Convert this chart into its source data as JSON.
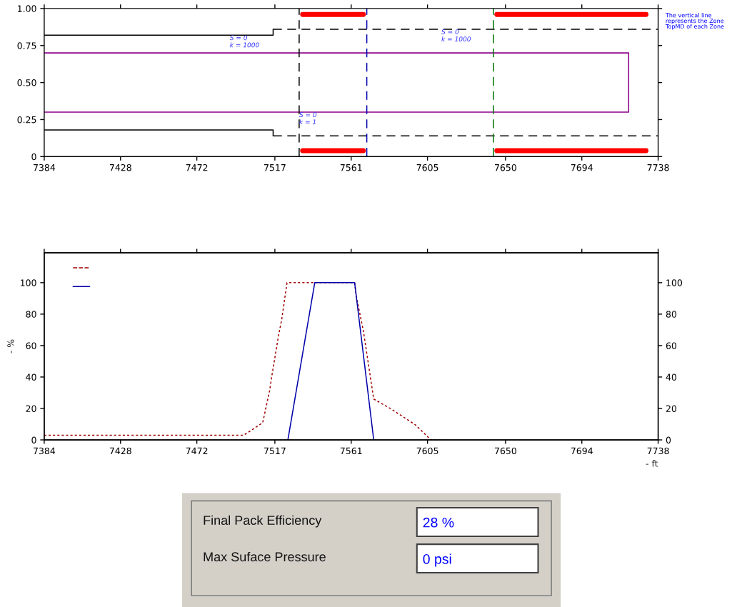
{
  "chart_data": [
    {
      "type": "line",
      "xlim": [
        7384,
        7738
      ],
      "xticks": [
        7384,
        7428,
        7472,
        7517,
        7561,
        7605,
        7650,
        7694,
        7738
      ],
      "ylim": [
        0,
        1
      ],
      "yticks": [
        0,
        0.25,
        {
          "value": 0.5,
          "label": "0.50"
        },
        0.75,
        {
          "value": 1,
          "label": "1.00"
        }
      ],
      "grid": false,
      "legend": false,
      "series": [
        {
          "color": "#000000",
          "line_style": "solid",
          "x": [
            7384,
            7516,
            7516
          ],
          "values": [
            0.82,
            0.82,
            0.86
          ]
        },
        {
          "color": "#000000",
          "line_style": "dashed",
          "x": [
            7516,
            7738
          ],
          "values": [
            0.86,
            0.86
          ]
        },
        {
          "color": "#000000",
          "line_style": "solid",
          "x": [
            7384,
            7516,
            7516
          ],
          "values": [
            0.18,
            0.18,
            0.14
          ]
        },
        {
          "color": "#000000",
          "line_style": "dashed",
          "x": [
            7516,
            7738
          ],
          "values": [
            0.14,
            0.14
          ]
        },
        {
          "color": "#8b008b",
          "line_style": "solid",
          "x": [
            7384,
            7721,
            7721,
            7384
          ],
          "values": [
            0.7,
            0.7,
            0.3,
            0.3
          ]
        },
        {
          "color": "#ff0000",
          "line_style": "solid",
          "x": [
            7533,
            7568,
            7600,
            7645,
            7731
          ],
          "values": [
            0.96,
            0.96,
            null,
            0.96,
            0.96
          ]
        },
        {
          "color": "#ff0000",
          "line_style": "solid",
          "x": [
            7533,
            7568,
            7600,
            7645,
            7731
          ],
          "values": [
            0.04,
            0.04,
            null,
            0.04,
            0.04
          ]
        }
      ],
      "ref_lines": [
        {
          "axis": "x",
          "value": 7531,
          "color": "#000000",
          "line_style": "dashed"
        },
        {
          "axis": "x",
          "value": 7570,
          "color": "#0000aa",
          "line_style": "dashed"
        },
        {
          "axis": "x",
          "value": 7643,
          "color": "#007700",
          "line_style": "dashed"
        }
      ],
      "annotations": [
        {
          "text": "S = 0\nk = 1000",
          "x": 7491,
          "y": 0.82
        },
        {
          "text": "S = 0\nk = 1",
          "x": 7531,
          "y": 0.3
        },
        {
          "text": "S = 0\nk = 1000",
          "x": 7613,
          "y": 0.86
        },
        "The vertical line\nrepresents the Zone\nTopMD of each Zone"
      ]
    },
    {
      "type": "line",
      "xlabel": "- ft",
      "ylabel": "- %",
      "xlim": [
        7384,
        7738
      ],
      "xticks": [
        7384,
        7428,
        7472,
        7517,
        7561,
        7605,
        7650,
        7694,
        7738
      ],
      "ylim": [
        0,
        119
      ],
      "yticks": [
        0,
        20,
        40,
        60,
        80,
        100
      ],
      "y2lim": [
        0,
        119
      ],
      "y2ticks": [
        0,
        20,
        40,
        60,
        80,
        100
      ],
      "grid": false,
      "series": [
        {
          "color": "#a00000",
          "line_style": "dotted",
          "x": [
            7384,
            7499,
            7504,
            7510,
            7514,
            7515,
            7519,
            7521,
            7524,
            7563,
            7564,
            7568,
            7574,
            7584,
            7598,
            7607,
            7614
          ],
          "values": [
            3,
            3,
            6.5,
            11,
            31.5,
            39,
            65.6,
            77,
            100,
            100,
            91,
            69.5,
            26,
            19.7,
            9.6,
            0,
            0
          ]
        },
        {
          "color": "#0000aa",
          "line_style": "solid",
          "x": [
            7524.5,
            7540,
            7563,
            7574
          ],
          "values": [
            0,
            100,
            100,
            0
          ]
        }
      ]
    },
    {
      "type": "other",
      "annotations": [
        "Final Pack Efficiency",
        "28 %",
        "Max Suface Pressure",
        "0 psi"
      ]
    }
  ]
}
